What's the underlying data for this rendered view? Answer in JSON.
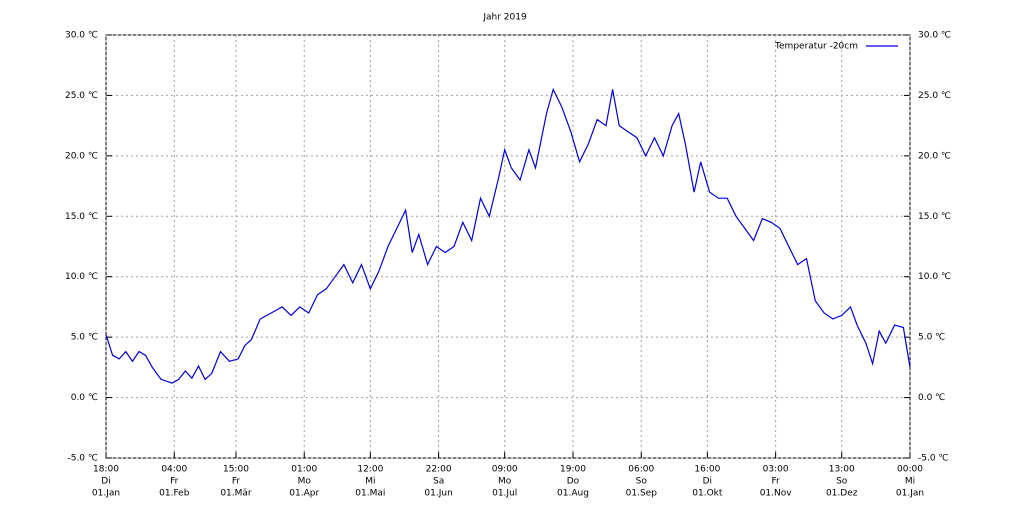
{
  "chart_data": {
    "type": "line",
    "title": "Jahr 2019",
    "x": [
      0,
      3,
      6,
      9,
      12,
      15,
      18,
      21,
      25,
      30,
      33,
      36,
      39,
      42,
      45,
      48,
      52,
      56,
      60,
      63,
      66,
      70,
      75,
      80,
      84,
      88,
      92,
      96,
      100,
      104,
      108,
      112,
      116,
      120,
      124,
      128,
      132,
      136,
      139,
      142,
      146,
      150,
      154,
      158,
      162,
      166,
      170,
      174,
      178,
      181,
      184,
      188,
      192,
      195,
      200,
      203,
      207,
      211,
      215,
      219,
      223,
      227,
      230,
      233,
      237,
      241,
      245,
      249,
      253,
      257,
      260,
      263,
      267,
      270,
      274,
      278,
      282,
      286,
      290,
      294,
      298,
      302,
      306,
      310,
      314,
      318,
      322,
      326,
      330,
      334,
      338,
      341,
      345,
      348,
      351,
      354,
      358,
      362,
      365
    ],
    "series": [
      {
        "name": "Temperatur -20cm",
        "color": "#0000e0",
        "values": [
          5.2,
          3.5,
          3.2,
          3.8,
          3.0,
          3.8,
          3.5,
          2.5,
          1.5,
          1.2,
          1.5,
          2.2,
          1.6,
          2.6,
          1.5,
          2.0,
          3.8,
          3.0,
          3.2,
          4.3,
          4.8,
          6.5,
          7.0,
          7.5,
          6.8,
          7.5,
          7.0,
          8.5,
          9.0,
          10.0,
          11.0,
          9.5,
          11.0,
          9.0,
          10.5,
          12.5,
          14.0,
          15.5,
          12.0,
          13.5,
          11.0,
          12.5,
          12.0,
          12.5,
          14.5,
          13.0,
          16.5,
          15.0,
          18.0,
          20.5,
          19.0,
          18.0,
          20.5,
          19.0,
          23.5,
          25.5,
          24.0,
          22.0,
          19.5,
          21.0,
          23.0,
          22.5,
          25.5,
          22.5,
          22.0,
          21.5,
          20.0,
          21.5,
          20.0,
          22.5,
          23.5,
          21.0,
          17.0,
          19.5,
          17.0,
          16.5,
          16.5,
          15.0,
          14.0,
          13.0,
          14.8,
          14.5,
          14.0,
          12.5,
          11.0,
          11.5,
          8.0,
          7.0,
          6.5,
          6.8,
          7.5,
          6.0,
          4.5,
          2.8,
          5.5,
          4.5,
          6.0,
          5.8,
          2.5
        ]
      }
    ],
    "xlim": [
      0,
      365
    ],
    "xticks": [
      {
        "value": 0,
        "label": [
          "18:00",
          "Di",
          "01.Jan"
        ]
      },
      {
        "value": 31,
        "label": [
          "04:00",
          "Fr",
          "01.Feb"
        ]
      },
      {
        "value": 59,
        "label": [
          "15:00",
          "Fr",
          "01.Mär"
        ]
      },
      {
        "value": 90,
        "label": [
          "01:00",
          "Mo",
          "01.Apr"
        ]
      },
      {
        "value": 120,
        "label": [
          "12:00",
          "Mi",
          "01.Mai"
        ]
      },
      {
        "value": 151,
        "label": [
          "22:00",
          "Sa",
          "01.Jun"
        ]
      },
      {
        "value": 181,
        "label": [
          "09:00",
          "Mo",
          "01.Jul"
        ]
      },
      {
        "value": 212,
        "label": [
          "19:00",
          "Do",
          "01.Aug"
        ]
      },
      {
        "value": 243,
        "label": [
          "06:00",
          "So",
          "01.Sep"
        ]
      },
      {
        "value": 273,
        "label": [
          "16:00",
          "Di",
          "01.Okt"
        ]
      },
      {
        "value": 304,
        "label": [
          "03:00",
          "Fr",
          "01.Nov"
        ]
      },
      {
        "value": 334,
        "label": [
          "13:00",
          "So",
          "01.Dez"
        ]
      },
      {
        "value": 365,
        "label": [
          "00:00",
          "Mi",
          "01.Jan"
        ]
      }
    ],
    "ylim": [
      -5,
      30
    ],
    "yticks": [
      {
        "value": -5,
        "label": "-5.0 ℃"
      },
      {
        "value": 0,
        "label": "0.0 ℃"
      },
      {
        "value": 5,
        "label": "5.0 ℃"
      },
      {
        "value": 10,
        "label": "10.0 ℃"
      },
      {
        "value": 15,
        "label": "15.0 ℃"
      },
      {
        "value": 20,
        "label": "20.0 ℃"
      },
      {
        "value": 25,
        "label": "25.0 ℃"
      },
      {
        "value": 30,
        "label": "30.0 ℃"
      }
    ],
    "grid": true,
    "legend": "top-right"
  }
}
